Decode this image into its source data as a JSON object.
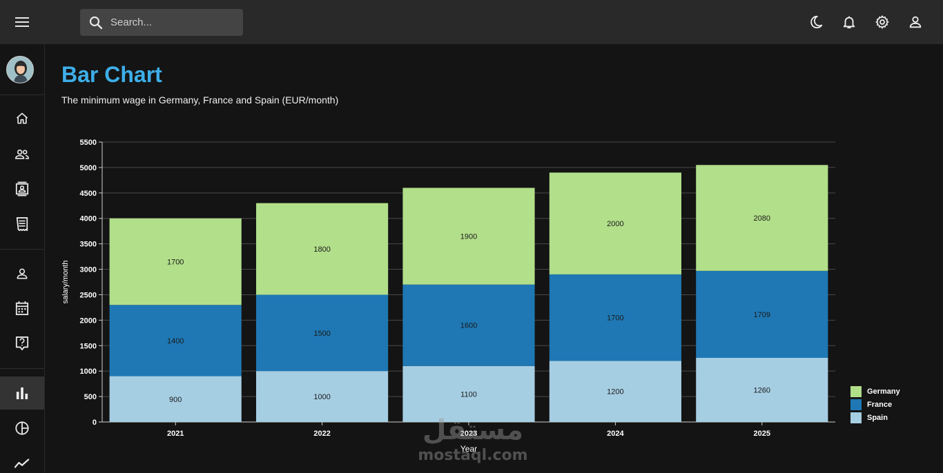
{
  "topbar": {
    "search_placeholder": "Search..."
  },
  "icons": {
    "menu": "menu-icon",
    "search": "search-icon",
    "theme": "moon-icon",
    "notifications": "bell-icon",
    "settings": "gear-icon",
    "account": "user-icon"
  },
  "sidebar": {
    "items": [
      {
        "name": "home",
        "icon": "home-icon"
      },
      {
        "name": "team",
        "icon": "people-icon"
      },
      {
        "name": "contacts",
        "icon": "contacts-icon"
      },
      {
        "name": "invoices",
        "icon": "receipt-icon"
      },
      {
        "name": "profile",
        "icon": "person-icon"
      },
      {
        "name": "calendar",
        "icon": "calendar-icon"
      },
      {
        "name": "faq",
        "icon": "help-icon"
      },
      {
        "name": "bar-chart",
        "icon": "bar-chart-icon",
        "active": true
      },
      {
        "name": "pie-chart",
        "icon": "pie-chart-icon"
      },
      {
        "name": "line-chart",
        "icon": "line-chart-icon"
      }
    ]
  },
  "page": {
    "title": "Bar Chart",
    "subtitle": "The minimum wage in Germany, France and Spain (EUR/month)"
  },
  "colors": {
    "title": "#3daee9",
    "germany": "#b2df8a",
    "france": "#1f78b4",
    "spain": "#a6cee3"
  },
  "chart_data": {
    "type": "bar",
    "stacked": true,
    "categories": [
      "2021",
      "2022",
      "2023",
      "2024",
      "2025"
    ],
    "series": [
      {
        "name": "Spain",
        "values": [
          900,
          1000,
          1100,
          1200,
          1260
        ],
        "color": "#a6cee3"
      },
      {
        "name": "France",
        "values": [
          1400,
          1500,
          1600,
          1700,
          1709
        ],
        "color": "#1f78b4"
      },
      {
        "name": "Germany",
        "values": [
          1700,
          1800,
          1900,
          2000,
          2080
        ],
        "color": "#b2df8a"
      }
    ],
    "legend_order": [
      "Germany",
      "France",
      "Spain"
    ],
    "xlabel": "Year",
    "ylabel": "salary/month",
    "ylim": [
      0,
      5500
    ],
    "yticks": [
      0,
      500,
      1000,
      1500,
      2000,
      2500,
      3000,
      3500,
      4000,
      4500,
      5000,
      5500
    ],
    "grid": true,
    "legend_position": "bottom-right"
  },
  "watermark": {
    "text": "mostaql.com"
  }
}
